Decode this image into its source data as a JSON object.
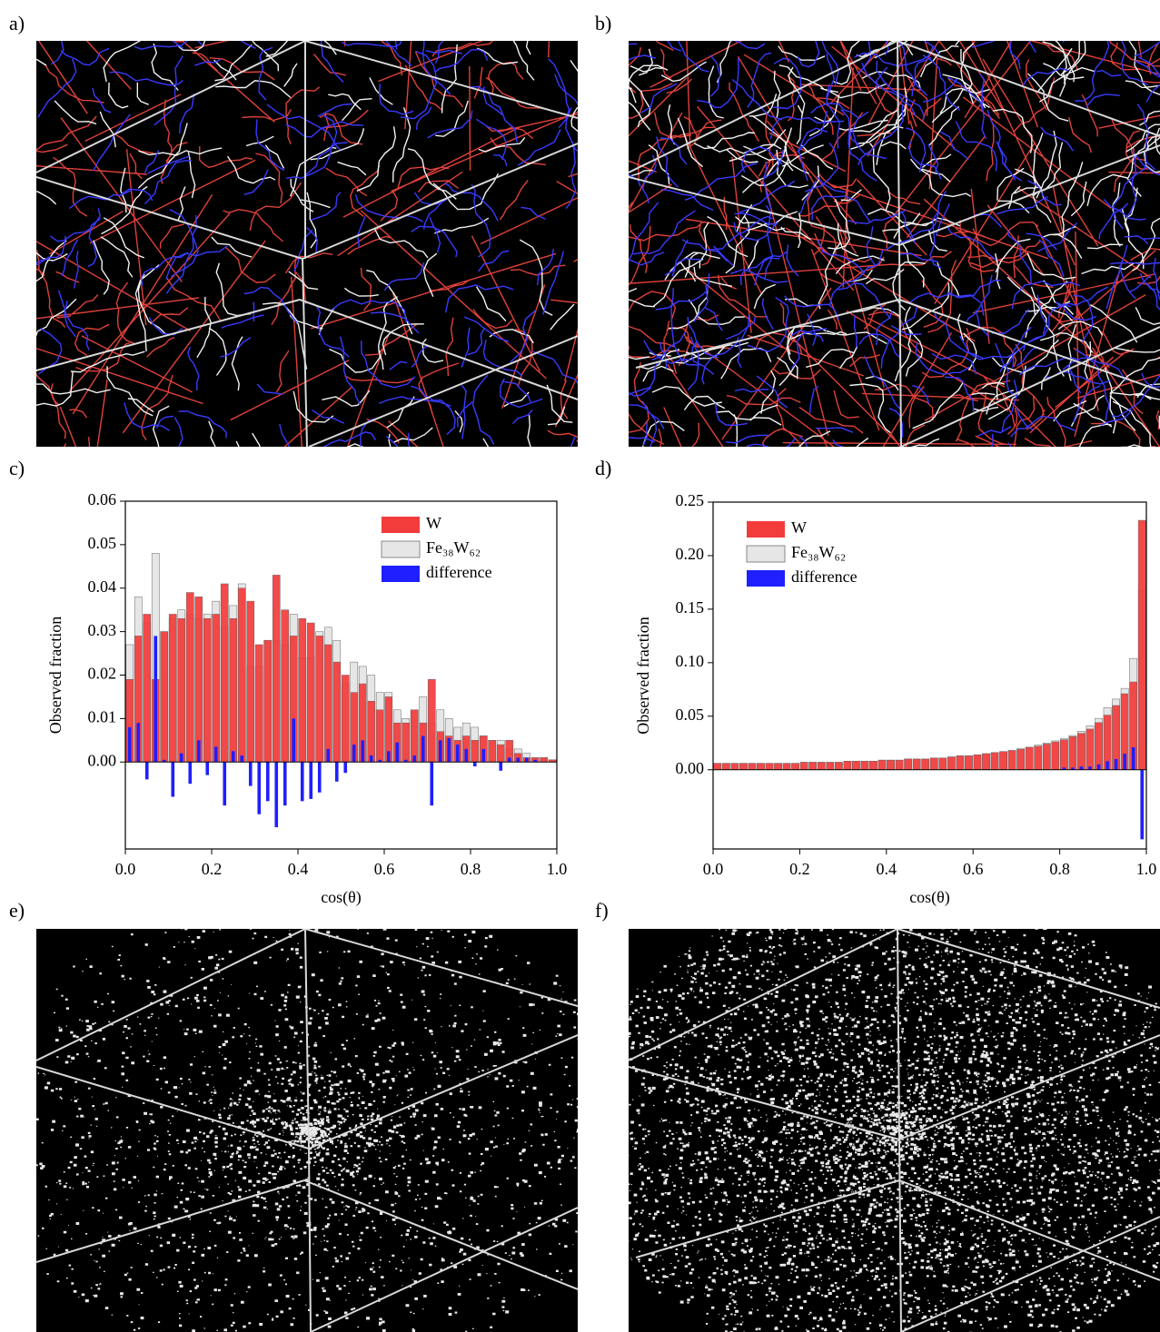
{
  "panel_labels": [
    "a)",
    "b)",
    "c)",
    "d)",
    "e)",
    "f)"
  ],
  "chart_data": [
    {
      "type": "bar",
      "ylabel": "Observed fraction",
      "xlabel": "cos(θ)",
      "xlim": [
        0,
        1
      ],
      "ylim": [
        -0.02,
        0.06
      ],
      "xticks": [
        {
          "value": 0,
          "label": "0.0"
        },
        0.2,
        0.4,
        0.6,
        0.8,
        {
          "value": 1,
          "label": "1.0"
        }
      ],
      "yticks": [
        {
          "value": 0,
          "label": "0.00"
        },
        0.01,
        0.02,
        0.03,
        0.04,
        0.05,
        0.06
      ],
      "legend": "upper right",
      "x": [
        0.01,
        0.03,
        0.05,
        0.07,
        0.09,
        0.11,
        0.13,
        0.15,
        0.17,
        0.19,
        0.21,
        0.23,
        0.25,
        0.27,
        0.29,
        0.31,
        0.33,
        0.35,
        0.37,
        0.39,
        0.41,
        0.43,
        0.45,
        0.47,
        0.49,
        0.51,
        0.53,
        0.55,
        0.57,
        0.59,
        0.61,
        0.63,
        0.65,
        0.67,
        0.69,
        0.71,
        0.73,
        0.75,
        0.77,
        0.79,
        0.81,
        0.83,
        0.85,
        0.87,
        0.89,
        0.91,
        0.93,
        0.95,
        0.97,
        0.99
      ],
      "series": [
        {
          "name": "W",
          "color": "#f23b3b",
          "values": [
            0.019,
            0.029,
            0.034,
            0.019,
            0.03,
            0.034,
            0.033,
            0.039,
            0.038,
            0.033,
            0.034,
            0.041,
            0.033,
            0.04,
            0.037,
            0.027,
            0.028,
            0.043,
            0.035,
            0.029,
            0.033,
            0.032,
            0.029,
            0.027,
            0.023,
            0.02,
            0.016,
            0.018,
            0.014,
            0.012,
            0.015,
            0.009,
            0.009,
            0.012,
            0.009,
            0.019,
            0.007,
            0.006,
            0.005,
            0.006,
            0.005,
            0.006,
            0.005,
            0.004,
            0.005,
            0.002,
            0.001,
            0.001,
            0.001,
            0.0005
          ]
        },
        {
          "name": "Fe₃₈W₆₂",
          "color": "#e6e6e6",
          "values": [
            0.027,
            0.038,
            0.032,
            0.048,
            0.03,
            0.033,
            0.035,
            0.034,
            0.033,
            0.034,
            0.037,
            0.031,
            0.036,
            0.041,
            0.022,
            0.022,
            0.028,
            0.028,
            0.027,
            0.034,
            0.024,
            0.024,
            0.03,
            0.031,
            0.028,
            0.018,
            0.023,
            0.022,
            0.02,
            0.016,
            0.016,
            0.012,
            0.01,
            0.012,
            0.015,
            0.009,
            0.012,
            0.01,
            0.008,
            0.009,
            0.008,
            0.006,
            0.005,
            0.005,
            0.003,
            0.003,
            0.002,
            0.001,
            0.001,
            0.0005
          ]
        },
        {
          "name": "difference",
          "color": "#1f1fff",
          "values": [
            0.008,
            0.009,
            -0.004,
            0.029,
            0.0005,
            -0.008,
            0.002,
            -0.005,
            0.005,
            -0.003,
            0.0035,
            -0.01,
            0.0025,
            0.0015,
            -0.0055,
            -0.012,
            -0.009,
            -0.015,
            -0.01,
            0.01,
            -0.009,
            -0.0085,
            -0.007,
            0.003,
            -0.0045,
            -0.0025,
            0.004,
            0.005,
            0.0015,
            0.0005,
            0.0025,
            0.0045,
            0.0005,
            0.0015,
            0.006,
            -0.01,
            0.005,
            0.0055,
            0.004,
            0.003,
            -0.001,
            0.003,
            0,
            -0.002,
            0.001,
            0.001,
            0.001,
            0.0005,
            0,
            0
          ]
        }
      ]
    },
    {
      "type": "bar",
      "ylabel": "Observed fraction",
      "xlabel": "cos(θ)",
      "xlim": [
        0,
        1
      ],
      "ylim": [
        -0.074,
        0.25
      ],
      "xticks": [
        {
          "value": 0,
          "label": "0.0"
        },
        0.2,
        0.4,
        0.6,
        0.8,
        {
          "value": 1,
          "label": "1.0"
        }
      ],
      "yticks": [
        {
          "value": 0,
          "label": "0.00"
        },
        0.05,
        {
          "value": 0.1,
          "label": "0.10"
        },
        0.15,
        {
          "value": 0.2,
          "label": "0.20"
        },
        0.25
      ],
      "legend": "upper left",
      "x": [
        0.01,
        0.03,
        0.05,
        0.07,
        0.09,
        0.11,
        0.13,
        0.15,
        0.17,
        0.19,
        0.21,
        0.23,
        0.25,
        0.27,
        0.29,
        0.31,
        0.33,
        0.35,
        0.37,
        0.39,
        0.41,
        0.43,
        0.45,
        0.47,
        0.49,
        0.51,
        0.53,
        0.55,
        0.57,
        0.59,
        0.61,
        0.63,
        0.65,
        0.67,
        0.69,
        0.71,
        0.73,
        0.75,
        0.77,
        0.79,
        0.81,
        0.83,
        0.85,
        0.87,
        0.89,
        0.91,
        0.93,
        0.95,
        0.97,
        0.99
      ],
      "series": [
        {
          "name": "W",
          "color": "#f23b3b",
          "values": [
            0.006,
            0.006,
            0.006,
            0.006,
            0.006,
            0.006,
            0.006,
            0.006,
            0.006,
            0.006,
            0.007,
            0.007,
            0.007,
            0.007,
            0.007,
            0.008,
            0.008,
            0.008,
            0.008,
            0.009,
            0.009,
            0.009,
            0.01,
            0.01,
            0.01,
            0.011,
            0.011,
            0.012,
            0.013,
            0.013,
            0.014,
            0.015,
            0.016,
            0.017,
            0.018,
            0.019,
            0.021,
            0.022,
            0.024,
            0.026,
            0.028,
            0.031,
            0.034,
            0.038,
            0.044,
            0.051,
            0.06,
            0.071,
            0.082,
            0.233
          ]
        },
        {
          "name": "Fe₃₈W₆₂",
          "color": "#e6e6e6",
          "values": [
            0.006,
            0.006,
            0.006,
            0.006,
            0.006,
            0.006,
            0.006,
            0.006,
            0.006,
            0.006,
            0.007,
            0.007,
            0.007,
            0.007,
            0.007,
            0.008,
            0.008,
            0.008,
            0.008,
            0.009,
            0.009,
            0.009,
            0.01,
            0.01,
            0.01,
            0.011,
            0.011,
            0.012,
            0.013,
            0.013,
            0.014,
            0.015,
            0.016,
            0.017,
            0.018,
            0.02,
            0.021,
            0.023,
            0.025,
            0.027,
            0.029,
            0.032,
            0.036,
            0.041,
            0.048,
            0.058,
            0.066,
            0.076,
            0.104,
            0.168
          ]
        },
        {
          "name": "difference",
          "color": "#1f1fff",
          "values": [
            0,
            0,
            0,
            0,
            0,
            0,
            0,
            0,
            0,
            0,
            0,
            0,
            0,
            0,
            0,
            0,
            0,
            0,
            0,
            0,
            0,
            0,
            0,
            0,
            0,
            0,
            0,
            0,
            0,
            0,
            0,
            0,
            0,
            0,
            0,
            0,
            0,
            0,
            0,
            0,
            0.002,
            0.002,
            0.003,
            0.003,
            0.005,
            0.008,
            0.01,
            0.015,
            0.021,
            -0.065
          ]
        }
      ]
    }
  ]
}
